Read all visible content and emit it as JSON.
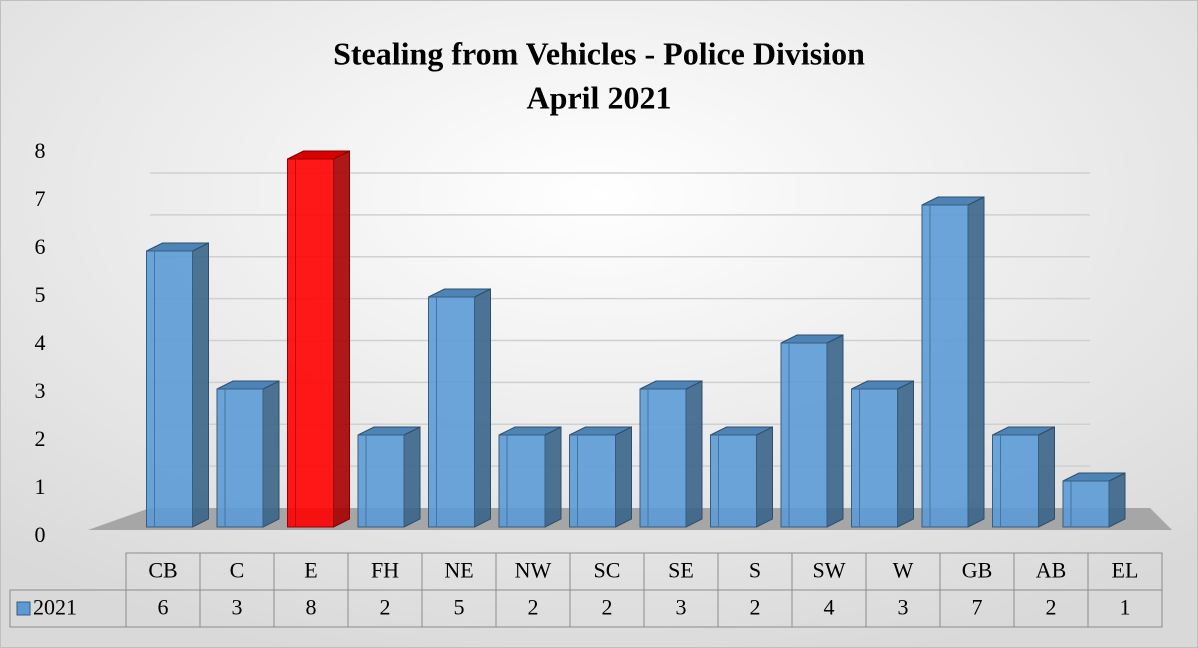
{
  "chart_data": {
    "type": "bar3d",
    "title": "Stealing from Vehicles - Police Division",
    "subtitle": "April 2021",
    "categories": [
      "CB",
      "C",
      "E",
      "FH",
      "NE",
      "NW",
      "SC",
      "SE",
      "S",
      "SW",
      "W",
      "GB",
      "AB",
      "EL"
    ],
    "series": [
      {
        "name": "2021",
        "color": "#5b9bd5",
        "colors": [
          "#5b9bd5",
          "#5b9bd5",
          "#ff0000",
          "#5b9bd5",
          "#5b9bd5",
          "#5b9bd5",
          "#5b9bd5",
          "#5b9bd5",
          "#5b9bd5",
          "#5b9bd5",
          "#5b9bd5",
          "#5b9bd5",
          "#5b9bd5",
          "#5b9bd5"
        ],
        "values": [
          6,
          3,
          8,
          2,
          5,
          2,
          2,
          3,
          2,
          4,
          3,
          7,
          2,
          1
        ]
      }
    ],
    "ylim": [
      0,
      8
    ],
    "yticks": [
      0,
      1,
      2,
      3,
      4,
      5,
      6,
      7,
      8
    ],
    "grid": true,
    "data_table": true
  }
}
